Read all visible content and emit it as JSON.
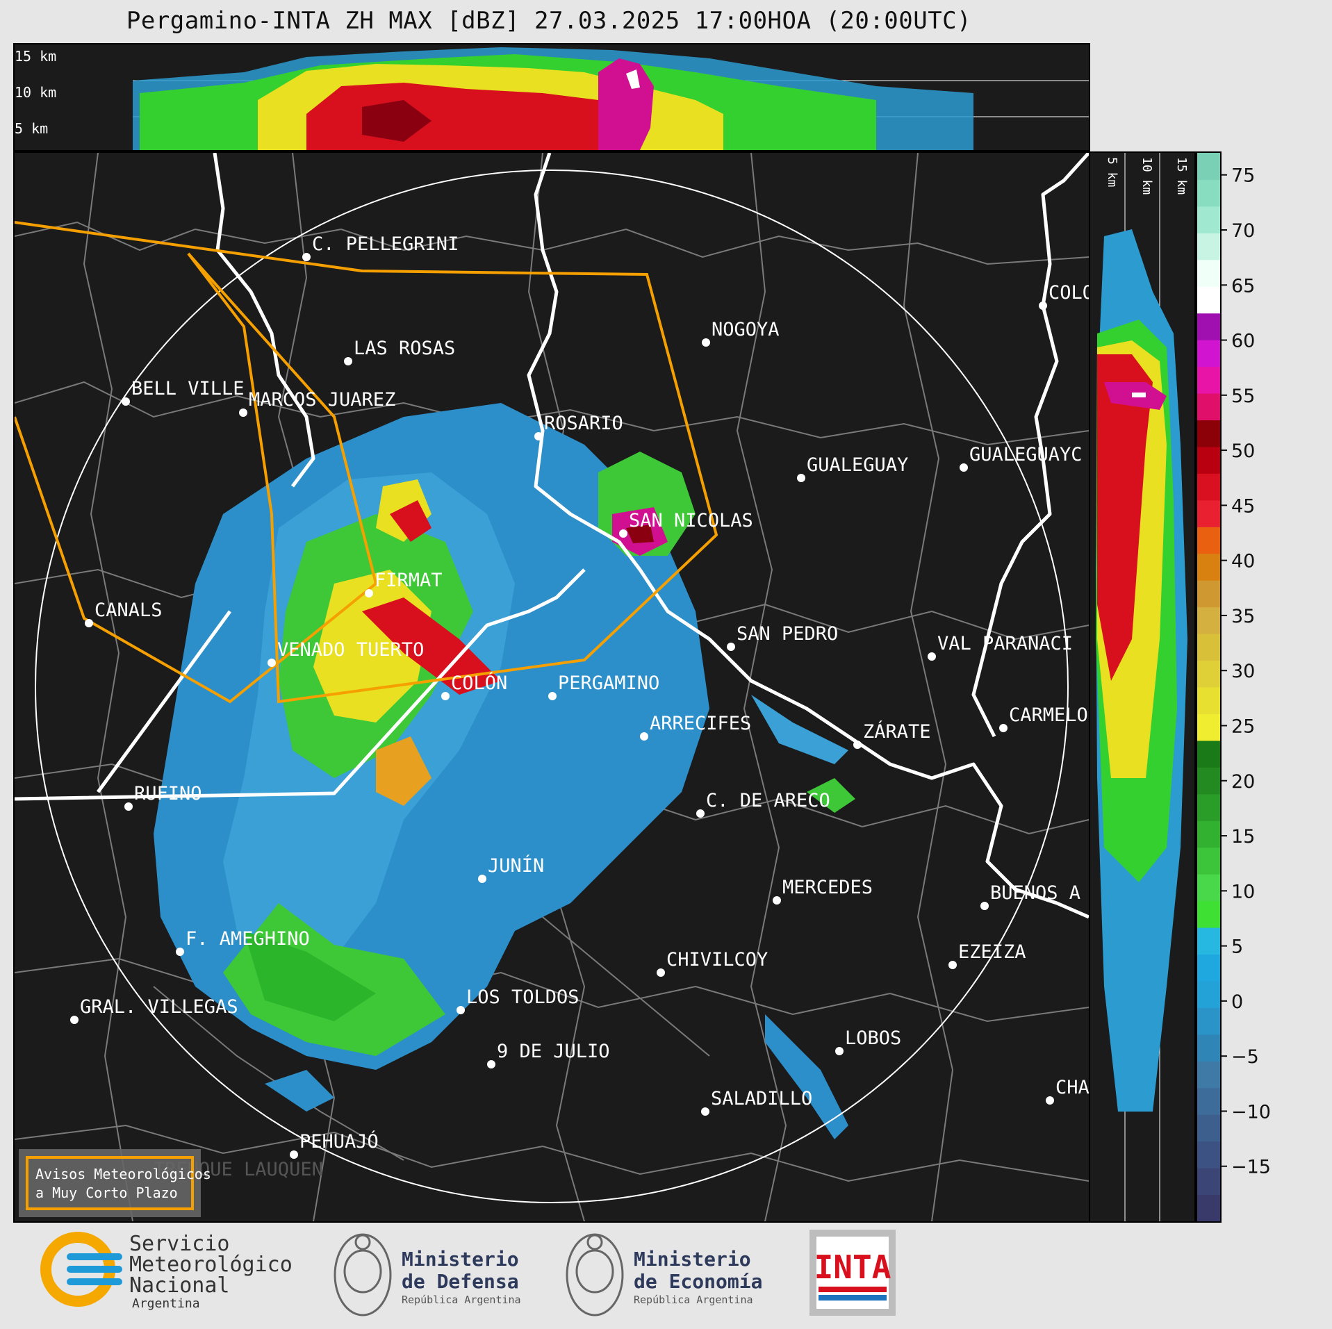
{
  "title": "Pergamino-INTA ZH MAX [dBZ] 27.03.2025 17:00HOA (20:00UTC)",
  "top_panel": {
    "height_labels": [
      "15 km",
      "10 km",
      "5 km"
    ]
  },
  "side_panel": {
    "height_labels": [
      "5 km",
      "10 km",
      "15 km"
    ]
  },
  "cities": [
    {
      "name": "C. PELLEGRINI"
    },
    {
      "name": "LAS ROSAS"
    },
    {
      "name": "NOGOYA"
    },
    {
      "name": "BELL VILLE"
    },
    {
      "name": "MARCOS JUAREZ"
    },
    {
      "name": "COLO"
    },
    {
      "name": "ROSARIO"
    },
    {
      "name": "GUALEGUAYC"
    },
    {
      "name": "GUALEGUAY"
    },
    {
      "name": "SAN NICOLAS"
    },
    {
      "name": "FIRMAT"
    },
    {
      "name": "CANALS"
    },
    {
      "name": "SAN PEDRO"
    },
    {
      "name": "VAL PARANACI"
    },
    {
      "name": "VENADO TUERTO"
    },
    {
      "name": "COLÓN"
    },
    {
      "name": "PERGAMINO"
    },
    {
      "name": "CARMELO"
    },
    {
      "name": "ARRECIFES"
    },
    {
      "name": "ZÁRATE"
    },
    {
      "name": "RUFINO"
    },
    {
      "name": "C. DE ARECO"
    },
    {
      "name": "JUNÍN"
    },
    {
      "name": "BUENOS A"
    },
    {
      "name": "MERCEDES"
    },
    {
      "name": "F. AMEGHINO"
    },
    {
      "name": "EZEIZA"
    },
    {
      "name": "CHIVILCOY"
    },
    {
      "name": "LOS TOLDOS"
    },
    {
      "name": "GRAL. VILLEGAS"
    },
    {
      "name": "LOBOS"
    },
    {
      "name": "9 DE JULIO"
    },
    {
      "name": "SALADILLO"
    },
    {
      "name": "CHA"
    },
    {
      "name": "PEHUAJÓ"
    },
    {
      "name": "TRENQUE LAUQUEN"
    }
  ],
  "legend_box": {
    "line1": "Avisos Meteorológicos",
    "line2": "a Muy Corto Plazo",
    "border_color": "#f5a000"
  },
  "colorbar": {
    "unit": "dBZ",
    "ticks": [
      "75",
      "70",
      "65",
      "60",
      "55",
      "50",
      "45",
      "40",
      "35",
      "30",
      "25",
      "20",
      "15",
      "10",
      "5",
      "0",
      "−5",
      "−10",
      "−15"
    ],
    "range": [
      -20,
      77
    ]
  },
  "logos": {
    "smn_line1": "Servicio",
    "smn_line2": "Meteorológico",
    "smn_line3": "Nacional",
    "smn_line4": "Argentina",
    "defensa_line1": "Ministerio",
    "defensa_line2": "de Defensa",
    "defensa_line3": "República Argentina",
    "economia_line1": "Ministerio",
    "economia_line2": "de Economía",
    "economia_line3": "República Argentina",
    "inta": "INTA"
  },
  "colors": {
    "background": "#1b1b1b",
    "warning_polygon": "#f5a000",
    "river": "#ffffff",
    "boundaries": "#7a7a7a"
  }
}
